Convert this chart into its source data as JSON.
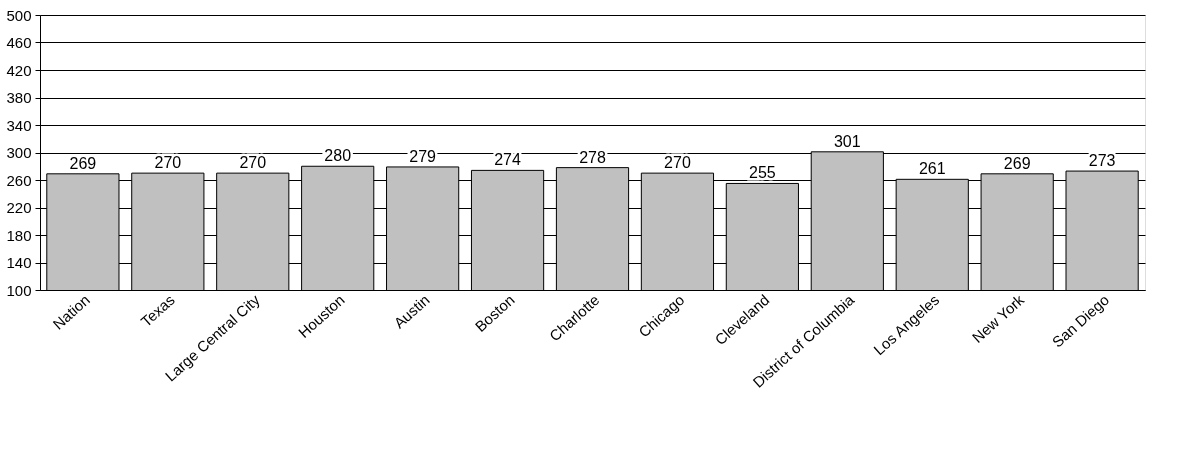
{
  "chart_data": {
    "type": "bar",
    "categories": [
      "Nation",
      "Texas",
      "Large Central City",
      "Houston",
      "Austin",
      "Boston",
      "Charlotte",
      "Chicago",
      "Cleveland",
      "District of Columbia",
      "Los Angeles",
      "New York",
      "San Diego"
    ],
    "values": [
      269,
      270,
      270,
      280,
      279,
      274,
      278,
      270,
      255,
      301,
      261,
      269,
      273
    ],
    "color": "#c0c0c0",
    "ylim": [
      100,
      500
    ],
    "yticks": [
      100,
      140,
      180,
      220,
      260,
      300,
      340,
      380,
      420,
      460,
      500
    ],
    "grid": "y",
    "data_labels": true
  }
}
